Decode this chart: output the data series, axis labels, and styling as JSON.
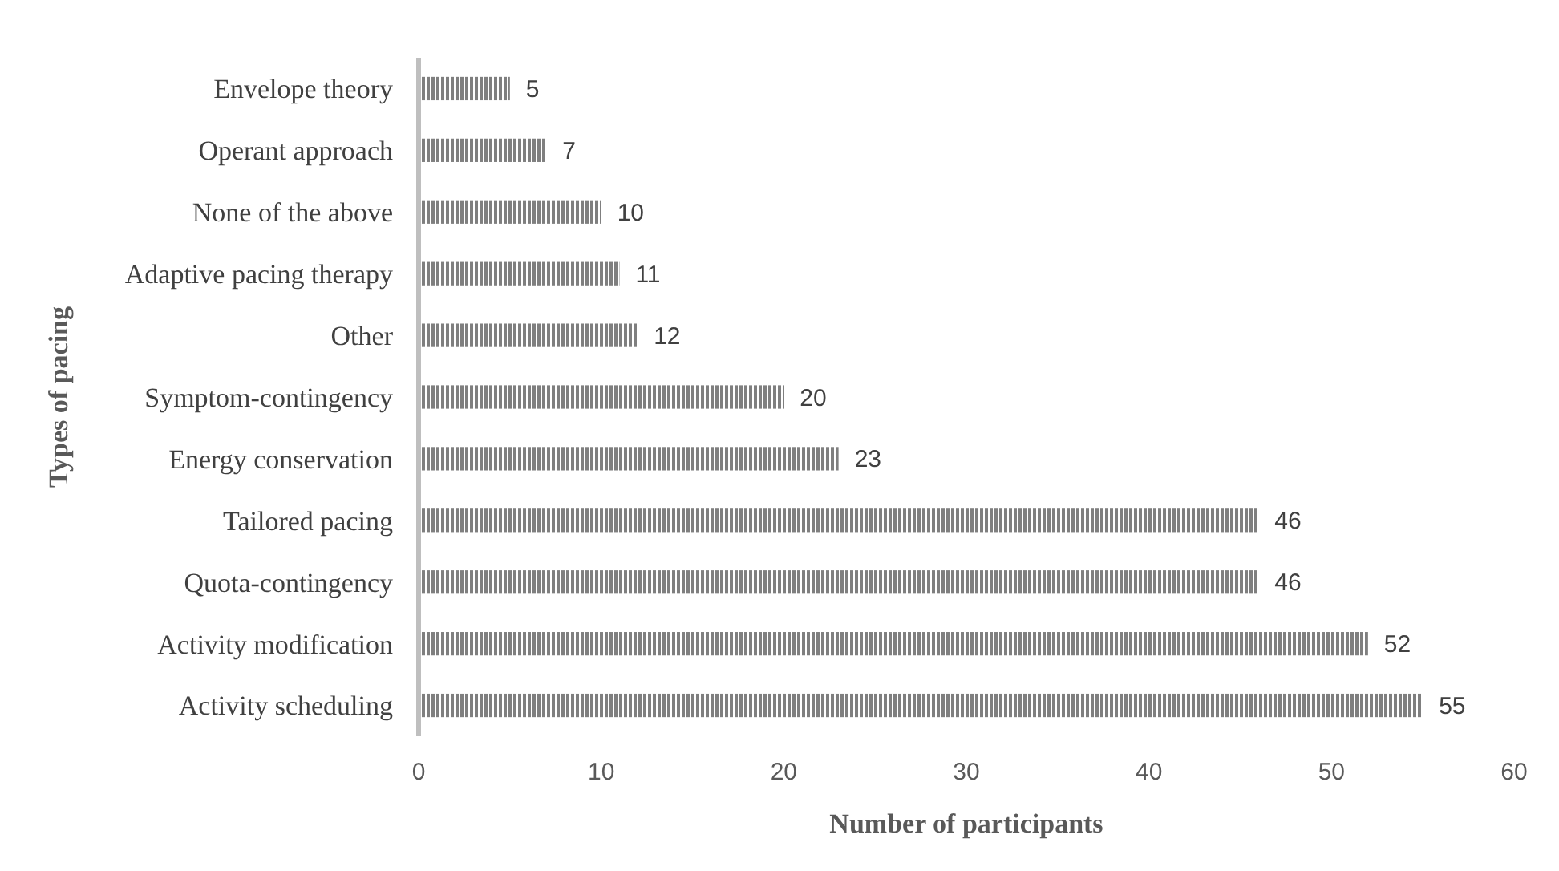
{
  "chart_data": {
    "type": "bar",
    "orientation": "horizontal",
    "xlabel": "Number of participants",
    "ylabel": "Types of pacing",
    "categories": [
      "Envelope theory",
      "Operant approach",
      "None of the above",
      "Adaptive pacing therapy",
      "Other",
      "Symptom-contingency",
      "Energy conservation",
      "Tailored pacing",
      "Quota-contingency",
      "Activity modification",
      "Activity scheduling"
    ],
    "values": [
      5,
      7,
      10,
      11,
      12,
      20,
      23,
      46,
      46,
      52,
      55
    ],
    "color": "#7f7f7f",
    "xlim": [
      0,
      60
    ],
    "xticks": [
      0,
      10,
      20,
      30,
      40,
      50,
      60
    ],
    "data_labels": true,
    "grid": false
  }
}
